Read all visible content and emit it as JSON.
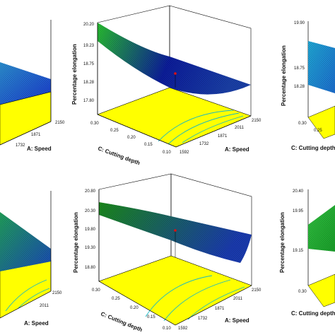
{
  "colors": {
    "floor": "#ffff00",
    "contour_line": "#19b9c4",
    "design_point": "#e01010",
    "frame": "#000000",
    "surface_high": "#0a8a1e",
    "surface_low": "#0a1aa0"
  },
  "chart_data": [
    {
      "type": "surface",
      "panel": "top-left",
      "x": {
        "label": "A: Speed",
        "ticks": [
          "1732",
          "1871",
          "2150"
        ]
      },
      "y": {
        "label": "",
        "ticks": []
      },
      "z": {
        "label": "",
        "ticks": []
      },
      "surface_colors": [
        "#1a3ad0",
        "#2b8fd0"
      ]
    },
    {
      "type": "surface",
      "panel": "top-middle",
      "x": {
        "label": "A: Speed",
        "ticks": [
          "1592",
          "1732",
          "1871",
          "2011",
          "2150"
        ],
        "range": [
          1592,
          2150
        ]
      },
      "y": {
        "label": "C: Cutting depth",
        "ticks": [
          "0.10",
          "0.15",
          "0.20",
          "0.25",
          "0.30"
        ],
        "range": [
          0.1,
          0.3
        ]
      },
      "z": {
        "label": "Percentage elongation",
        "ticks": [
          "17.80",
          "18.28",
          "18.75",
          "19.23",
          "20.20"
        ],
        "range": [
          17.8,
          20.2
        ]
      },
      "surface_colors": [
        "#0c1d9c",
        "#28c030"
      ]
    },
    {
      "type": "surface",
      "panel": "top-right",
      "x": {
        "label": "",
        "ticks": []
      },
      "y": {
        "label": "C: Cutting depth",
        "ticks": [
          "0.30",
          "0.25"
        ]
      },
      "z": {
        "label": "Percentage elongation",
        "ticks": [
          "19.90",
          "18.75",
          "18.28"
        ]
      },
      "surface_colors": [
        "#1fa8d6",
        "#1c6ed0"
      ]
    },
    {
      "type": "surface",
      "panel": "bottom-left",
      "x": {
        "label": "A: Speed",
        "ticks": [
          "2011",
          "2150"
        ]
      },
      "y": {
        "label": "",
        "ticks": []
      },
      "z": {
        "label": "",
        "ticks": []
      },
      "surface_colors": [
        "#20a05a",
        "#1a4ab8"
      ]
    },
    {
      "type": "surface",
      "panel": "bottom-middle",
      "x": {
        "label": "A: Speed",
        "ticks": [
          "1592",
          "1732",
          "1871",
          "2011",
          "2150"
        ],
        "range": [
          1592,
          2150
        ]
      },
      "y": {
        "label": "C: Cutting depth",
        "ticks": [
          "0.10",
          "0.15",
          "0.20",
          "0.25",
          "0.30"
        ],
        "range": [
          0.1,
          0.3
        ]
      },
      "z": {
        "label": "Percentage elongation",
        "ticks": [
          "18.80",
          "19.30",
          "19.80",
          "20.30",
          "20.80"
        ],
        "range": [
          18.8,
          20.8
        ]
      },
      "surface_colors": [
        "#1a3bb0",
        "#1a8a1a"
      ]
    },
    {
      "type": "surface",
      "panel": "bottom-right",
      "x": {
        "label": "",
        "ticks": []
      },
      "y": {
        "label": "C: Cutting depth",
        "ticks": [
          "0.30"
        ]
      },
      "z": {
        "label": "Percentage elongation",
        "ticks": [
          "20.40",
          "19.95",
          "19.15"
        ]
      },
      "surface_colors": [
        "#30c040",
        "#1aa02a"
      ]
    }
  ]
}
